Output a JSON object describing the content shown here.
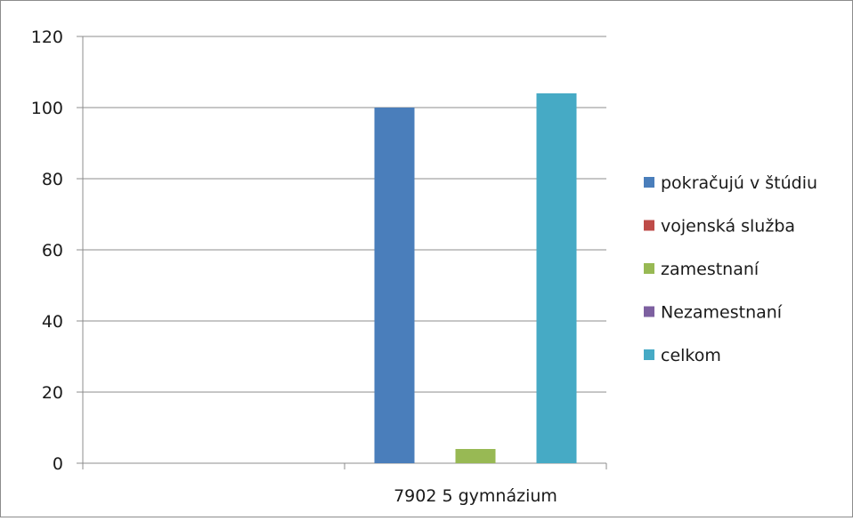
{
  "chart_data": {
    "type": "bar",
    "categories": [
      "",
      "7902 5 gymnázium"
    ],
    "series": [
      {
        "name": "pokračujú v štúdiu",
        "color": "#4a7ebb",
        "values": [
          0,
          100
        ]
      },
      {
        "name": "vojenská služba",
        "color": "#be4b48",
        "values": [
          0,
          0
        ]
      },
      {
        "name": "zamestnaní",
        "color": "#98b954",
        "values": [
          0,
          4
        ]
      },
      {
        "name": "Nezamestnaní",
        "color": "#7d60a0",
        "values": [
          0,
          0
        ]
      },
      {
        "name": "celkom",
        "color": "#46aac5",
        "values": [
          0,
          104
        ]
      }
    ],
    "ylim": [
      0,
      120
    ],
    "yticks": [
      0,
      20,
      40,
      60,
      80,
      100,
      120
    ],
    "grid": true,
    "legend_position": "right"
  }
}
